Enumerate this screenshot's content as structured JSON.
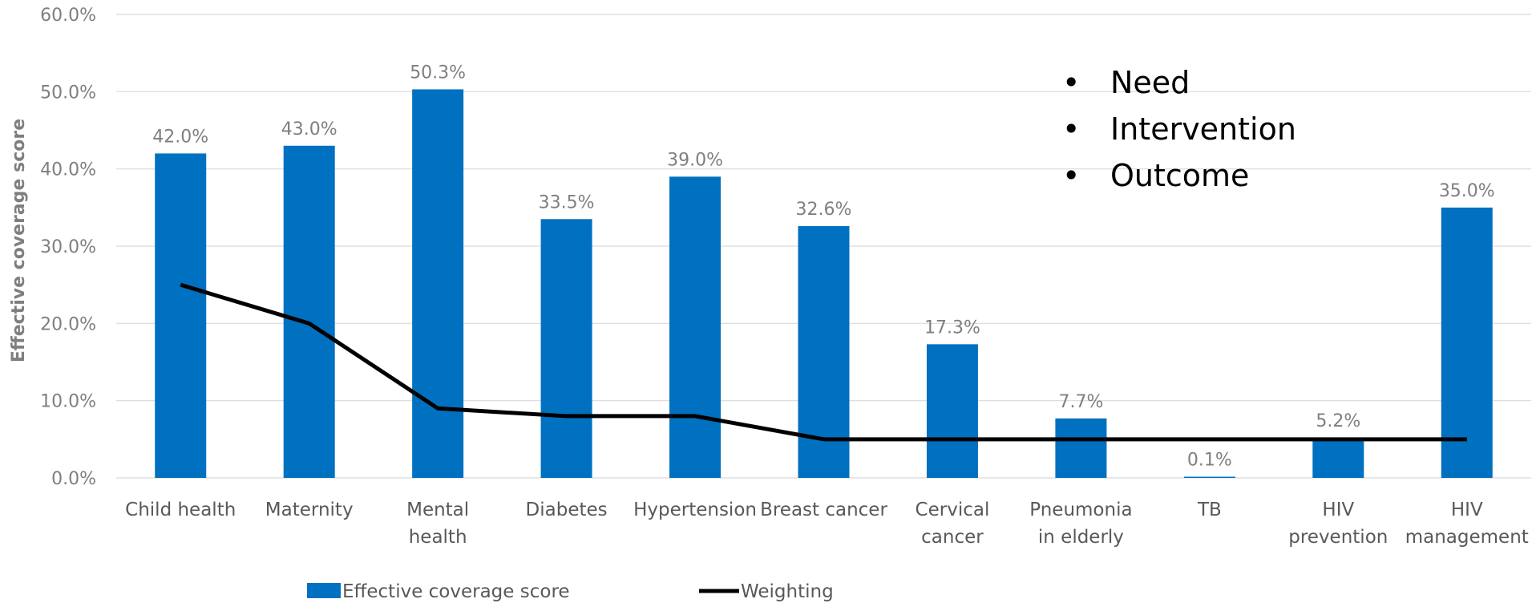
{
  "chart_data": {
    "type": "bar",
    "categories": [
      [
        "Child health"
      ],
      [
        "Maternity"
      ],
      [
        "Mental",
        "health"
      ],
      [
        "Diabetes"
      ],
      [
        "Hypertension"
      ],
      [
        "Breast cancer"
      ],
      [
        "Cervical",
        "cancer"
      ],
      [
        "Pneumonia",
        "in elderly"
      ],
      [
        "TB"
      ],
      [
        "HIV",
        "prevention"
      ],
      [
        "HIV",
        "management"
      ]
    ],
    "series": [
      {
        "name": "Effective coverage score",
        "type": "bar",
        "color": "#0070c0",
        "values": [
          42.0,
          43.0,
          50.3,
          33.5,
          39.0,
          32.6,
          17.3,
          7.7,
          0.1,
          5.2,
          35.0
        ],
        "labels": [
          "42.0%",
          "43.0%",
          "50.3%",
          "33.5%",
          "39.0%",
          "32.6%",
          "17.3%",
          "7.7%",
          "0.1%",
          "5.2%",
          "35.0%"
        ]
      },
      {
        "name": "Weighting",
        "type": "line",
        "color": "#000000",
        "values": [
          25,
          20,
          9,
          8,
          8,
          5,
          5,
          5,
          5,
          5,
          5
        ]
      }
    ],
    "ylabel": "Effective coverage score",
    "ylim": [
      0,
      60
    ],
    "yticks": [
      0,
      10,
      20,
      30,
      40,
      50,
      60
    ],
    "ytick_labels": [
      "0.0%",
      "10.0%",
      "20.0%",
      "30.0%",
      "40.0%",
      "50.0%",
      "60.0%"
    ],
    "grid": true,
    "legend": "bottom"
  },
  "annotation": {
    "bullet": "•",
    "items": [
      "Need",
      "Intervention",
      "Outcome"
    ]
  }
}
